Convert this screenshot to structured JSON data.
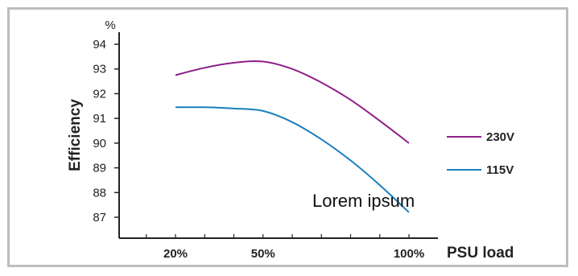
{
  "chart_data": {
    "type": "line",
    "ylabel": "Efficiency",
    "yunit": "%",
    "xlabel": "PSU load",
    "ylim": [
      86.2,
      94.8
    ],
    "y_ticks": [
      87,
      88,
      89,
      90,
      91,
      92,
      93,
      94
    ],
    "x_ticks": [
      "20%",
      "50%",
      "100%"
    ],
    "x_tick_values": [
      20,
      50,
      100
    ],
    "grid": false,
    "legend_position": "right",
    "annotation": "Lorem ipsum",
    "series": [
      {
        "name": "230V",
        "color": "#8e1f8a",
        "x": [
          20,
          30,
          40,
          50,
          60,
          70,
          80,
          90,
          100
        ],
        "y": [
          92.75,
          93.05,
          93.25,
          93.3,
          93.0,
          92.45,
          91.75,
          90.9,
          90.0
        ]
      },
      {
        "name": "115V",
        "color": "#1a7fbf",
        "x": [
          20,
          30,
          40,
          50,
          60,
          70,
          80,
          90,
          100
        ],
        "y": [
          91.45,
          91.45,
          91.4,
          91.3,
          90.85,
          90.15,
          89.3,
          88.3,
          87.2
        ]
      }
    ]
  }
}
